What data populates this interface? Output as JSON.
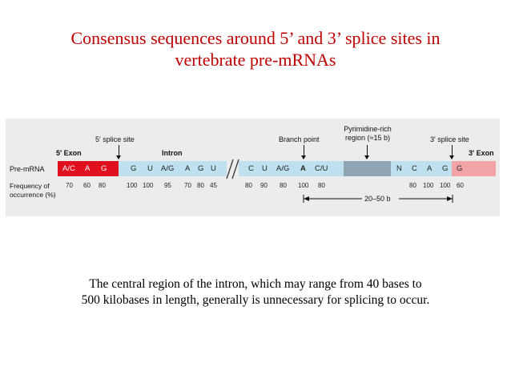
{
  "slide": {
    "title_line1": "Consensus sequences around 5’ and 3’ splice sites in",
    "title_line2": "vertebrate pre-mRNAs",
    "caption_line1": "The central region of the intron, which may range from 40 bases to",
    "caption_line2": "500 kilobases in length, generally is unnecessary for splicing to occur."
  },
  "diagram": {
    "labels": {
      "five_splice_site": "5′ splice site",
      "five_exon": "5′ Exon",
      "intron": "Intron",
      "branch_point": "Branch point",
      "pyrimidine_line1": "Pyrimidine-rich",
      "pyrimidine_line2": "region (≈15 b)",
      "three_splice_site": "3′ splice site",
      "three_exon": "3′ Exon",
      "pre_mrna": "Pre-mRNA",
      "frequency_line1": "Frequency of",
      "frequency_line2": "occurrence (%)",
      "distance": "20–50 b"
    },
    "exon5_bases": [
      "A/C",
      "A",
      "G"
    ],
    "exon5_freq": [
      "70",
      "60",
      "80"
    ],
    "intron5_bases": [
      "G",
      "U",
      "A/G",
      "A",
      "G",
      "U"
    ],
    "intron5_freq": [
      "100",
      "100",
      "95",
      "70",
      "80",
      "45"
    ],
    "branch_bases": [
      "C",
      "U",
      "A/G",
      "A",
      "C/U"
    ],
    "branch_freq": [
      "80",
      "90",
      "80",
      "100",
      "80"
    ],
    "intron3_bases": [
      "N",
      "C",
      "A",
      "G"
    ],
    "exon3_bases": [
      "G"
    ],
    "acceptor_freq": [
      "80",
      "100",
      "100",
      "60"
    ],
    "colors": {
      "exon5": "#e0101e",
      "exon3": "#f2a3a6",
      "intron": "#bfe0ef",
      "pyrimidine": "#8fa5b3",
      "title": "#c00000"
    }
  }
}
